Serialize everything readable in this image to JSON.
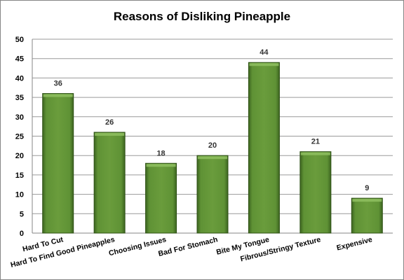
{
  "chart_data": {
    "type": "bar",
    "title": "Reasons of Disliking Pineapple",
    "categories": [
      "Hard To Cut",
      "Hard To Find Good Pineapples",
      "Choosing Issues",
      "Bad For Stomach",
      "Bite My Tongue",
      "Fibrous/Stringy Texture",
      "Expensive"
    ],
    "values": [
      36,
      26,
      18,
      20,
      44,
      21,
      9
    ],
    "xlabel": "",
    "ylabel": "",
    "ylim": [
      0,
      50
    ],
    "yticks": [
      0,
      5,
      10,
      15,
      20,
      25,
      30,
      35,
      40,
      45,
      50
    ],
    "grid": true,
    "legend": "none",
    "bar_color": "#5a8a32",
    "bar_edge_color": "#2f5216",
    "bar_highlight_color": "#8fc060"
  }
}
